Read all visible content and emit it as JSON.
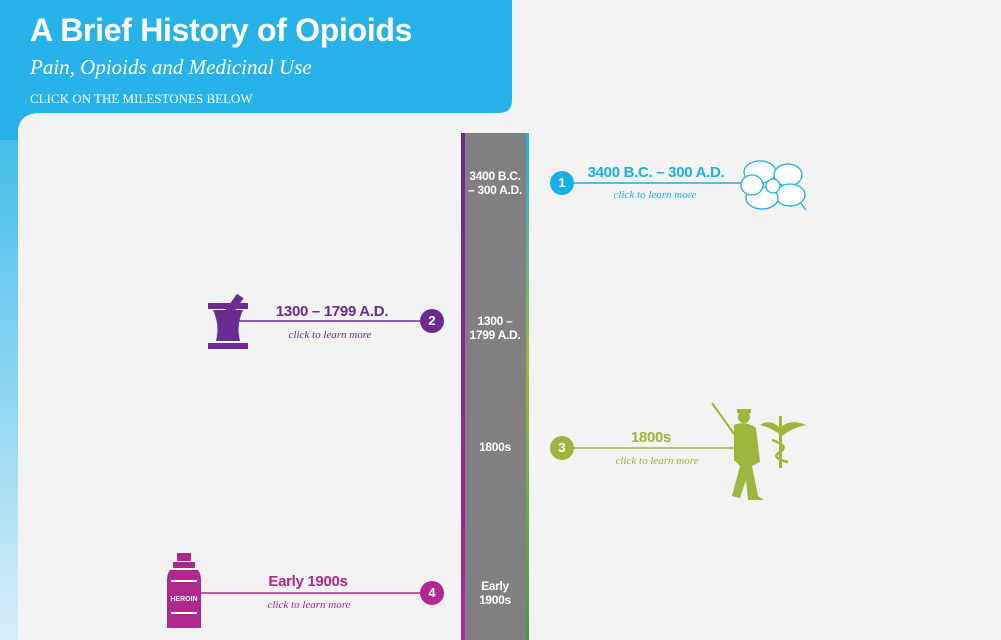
{
  "header": {
    "title": "A Brief History of Opioids",
    "subtitle": "Pain, Opioids and Medicinal Use",
    "instruction": "CLICK ON THE MILESTONES BELOW"
  },
  "timeline": {
    "labels": [
      "3400 B.C. – 300 A.D.",
      "1300 – 1799 A.D.",
      "1800s",
      "Early 1900s"
    ]
  },
  "milestones": [
    {
      "number": "1",
      "date": "3400 B.C. – 300 A.D.",
      "link": "click to learn more"
    },
    {
      "number": "2",
      "date": "1300 – 1799 A.D.",
      "link": "click to learn more"
    },
    {
      "number": "3",
      "date": "1800s",
      "link": "click to learn more"
    },
    {
      "number": "4",
      "date": "Early 1900s",
      "link": "click to learn more"
    }
  ],
  "bottle_label": "HEROIN"
}
